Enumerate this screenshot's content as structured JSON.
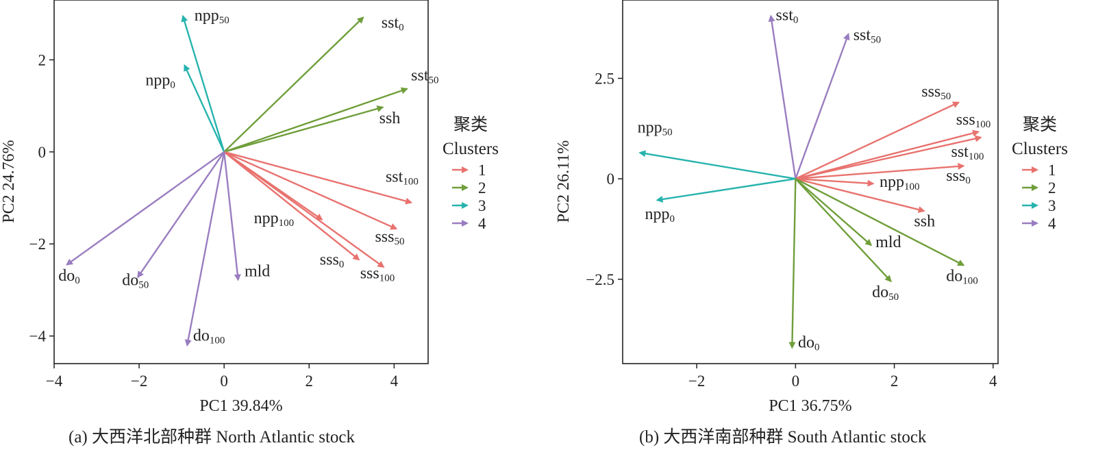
{
  "colors": {
    "1": "#e8726e",
    "2": "#6f9e3a",
    "3": "#27b3ae",
    "4": "#9a7dc0"
  },
  "chart_data": [
    {
      "type": "biplot",
      "panel": "a",
      "caption": "(a) 大西洋北部种群 North Atlantic stock",
      "xlabel": "PC1   39.84%",
      "ylabel": "PC2   24.76%",
      "xlim": [
        -4.0,
        4.8
      ],
      "ylim": [
        -4.6,
        3.3
      ],
      "xticks": [
        -4,
        -2,
        0,
        2,
        4
      ],
      "yticks": [
        -4,
        -2,
        0,
        2
      ],
      "legend": {
        "title_cn": "聚类",
        "title_en": "Clusters",
        "entries": [
          "1",
          "2",
          "3",
          "4"
        ]
      },
      "vectors": [
        {
          "base": "sst",
          "sub": "0",
          "x": 3.27,
          "y": 2.92,
          "cluster": "2",
          "lx": 3.7,
          "ly": 2.7
        },
        {
          "base": "sst",
          "sub": "50",
          "x": 4.3,
          "y": 1.37,
          "cluster": "2",
          "lx": 4.4,
          "ly": 1.55
        },
        {
          "base": "ssh",
          "sub": "",
          "x": 3.73,
          "y": 0.97,
          "cluster": "2",
          "lx": 3.65,
          "ly": 0.62
        },
        {
          "base": "npp",
          "sub": "50",
          "x": -0.97,
          "y": 2.95,
          "cluster": "3",
          "lx": -0.7,
          "ly": 2.85
        },
        {
          "base": "npp",
          "sub": "0",
          "x": -0.93,
          "y": 1.88,
          "cluster": "3",
          "lx": -1.85,
          "ly": 1.45
        },
        {
          "base": "sst",
          "sub": "100",
          "x": 4.4,
          "y": -1.1,
          "cluster": "1",
          "lx": 3.8,
          "ly": -0.65
        },
        {
          "base": "npp",
          "sub": "100",
          "x": 2.3,
          "y": -1.47,
          "cluster": "1",
          "lx": 0.7,
          "ly": -1.55
        },
        {
          "base": "sss",
          "sub": "50",
          "x": 4.05,
          "y": -1.67,
          "cluster": "1",
          "lx": 3.55,
          "ly": -1.95
        },
        {
          "base": "sss",
          "sub": "0",
          "x": 3.17,
          "y": -2.34,
          "cluster": "1",
          "lx": 2.25,
          "ly": -2.45
        },
        {
          "base": "sss",
          "sub": "100",
          "x": 3.75,
          "y": -2.5,
          "cluster": "1",
          "lx": 3.2,
          "ly": -2.75
        },
        {
          "base": "do",
          "sub": "0",
          "x": -3.7,
          "y": -2.45,
          "cluster": "4",
          "lx": -3.9,
          "ly": -2.8
        },
        {
          "base": "do",
          "sub": "50",
          "x": -2.03,
          "y": -2.72,
          "cluster": "4",
          "lx": -2.4,
          "ly": -2.9
        },
        {
          "base": "mld",
          "sub": "",
          "x": 0.33,
          "y": -2.78,
          "cluster": "4",
          "lx": 0.48,
          "ly": -2.7
        },
        {
          "base": "do",
          "sub": "100",
          "x": -0.87,
          "y": -4.2,
          "cluster": "4",
          "lx": -0.73,
          "ly": -4.1
        }
      ]
    },
    {
      "type": "biplot",
      "panel": "b",
      "caption": "(b) 大西洋南部种群 South Atlantic stock",
      "xlabel": "PC1   36.75%",
      "ylabel": "PC2   26.11%",
      "xlim": [
        -3.5,
        4.1
      ],
      "ylim": [
        -4.6,
        4.45
      ],
      "xticks": [
        -2,
        0,
        2,
        4
      ],
      "xtick_labels": [
        "−2",
        "0",
        "2",
        "4"
      ],
      "yticks": [
        -2.5,
        0,
        2.5
      ],
      "ytick_labels": [
        "−2.5",
        "0",
        "2.5"
      ],
      "legend": {
        "title_cn": "聚类",
        "title_en": "Clusters",
        "entries": [
          "1",
          "2",
          "3",
          "4"
        ]
      },
      "vectors": [
        {
          "base": "sst",
          "sub": "0",
          "x": -0.5,
          "y": 4.05,
          "cluster": "4",
          "lx": -0.4,
          "ly": 3.95
        },
        {
          "base": "sst",
          "sub": "50",
          "x": 1.07,
          "y": 3.6,
          "cluster": "4",
          "lx": 1.17,
          "ly": 3.45
        },
        {
          "base": "sss",
          "sub": "50",
          "x": 3.3,
          "y": 1.9,
          "cluster": "1",
          "lx": 2.55,
          "ly": 2.05
        },
        {
          "base": "sss",
          "sub": "100",
          "x": 3.7,
          "y": 1.17,
          "cluster": "1",
          "lx": 3.25,
          "ly": 1.35
        },
        {
          "base": "sst",
          "sub": "100",
          "x": 3.75,
          "y": 1.03,
          "cluster": "1",
          "lx": 3.15,
          "ly": 0.55
        },
        {
          "base": "sss",
          "sub": "0",
          "x": 3.4,
          "y": 0.32,
          "cluster": "1",
          "lx": 3.05,
          "ly": -0.05
        },
        {
          "base": "npp",
          "sub": "100",
          "x": 1.57,
          "y": -0.12,
          "cluster": "1",
          "lx": 1.7,
          "ly": -0.2
        },
        {
          "base": "ssh",
          "sub": "",
          "x": 2.6,
          "y": -0.8,
          "cluster": "1",
          "lx": 2.4,
          "ly": -1.18
        },
        {
          "base": "npp",
          "sub": "50",
          "x": -3.15,
          "y": 0.65,
          "cluster": "3",
          "lx": -3.2,
          "ly": 1.15
        },
        {
          "base": "npp",
          "sub": "0",
          "x": -2.8,
          "y": -0.53,
          "cluster": "3",
          "lx": -3.05,
          "ly": -1.0
        },
        {
          "base": "mld",
          "sub": "",
          "x": 1.53,
          "y": -1.65,
          "cluster": "2",
          "lx": 1.62,
          "ly": -1.7
        },
        {
          "base": "do",
          "sub": "100",
          "x": 3.4,
          "y": -2.15,
          "cluster": "2",
          "lx": 3.05,
          "ly": -2.55
        },
        {
          "base": "do",
          "sub": "50",
          "x": 1.93,
          "y": -2.55,
          "cluster": "2",
          "lx": 1.55,
          "ly": -2.95
        },
        {
          "base": "do",
          "sub": "0",
          "x": -0.07,
          "y": -4.2,
          "cluster": "2",
          "lx": 0.05,
          "ly": -4.2
        }
      ]
    }
  ]
}
